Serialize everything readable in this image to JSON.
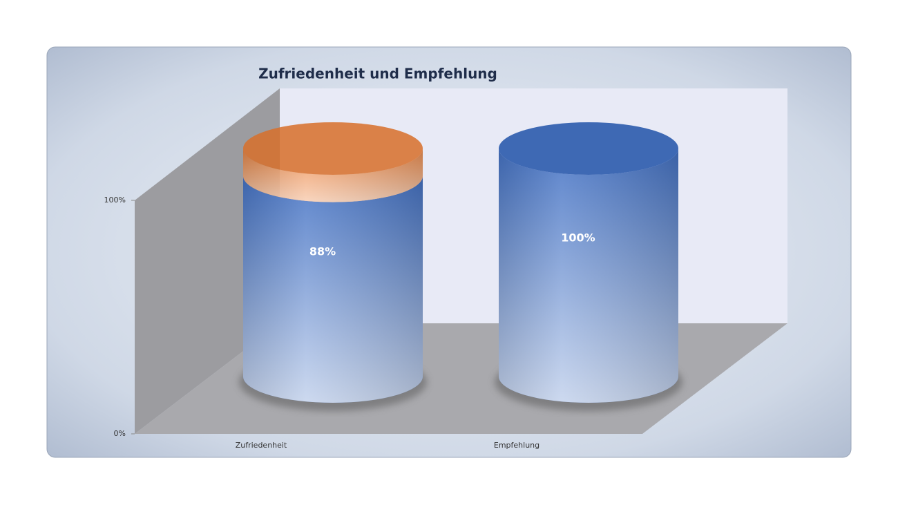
{
  "chart_data": {
    "type": "cylinder-stacked",
    "title": "Zufriedenheit und Empfehlung",
    "categories": [
      "Zufriedenheit",
      "Empfehlung"
    ],
    "series": [
      {
        "color": "#4472c4",
        "values": [
          88,
          100
        ],
        "value_labels": [
          "88%",
          "100%"
        ]
      },
      {
        "color": "#ed7d31",
        "values": [
          12,
          0
        ]
      }
    ],
    "ylim": [
      0,
      100
    ],
    "yticks": [
      {
        "value": 0,
        "label": "0%"
      },
      {
        "value": 100,
        "label": "100%"
      }
    ]
  }
}
